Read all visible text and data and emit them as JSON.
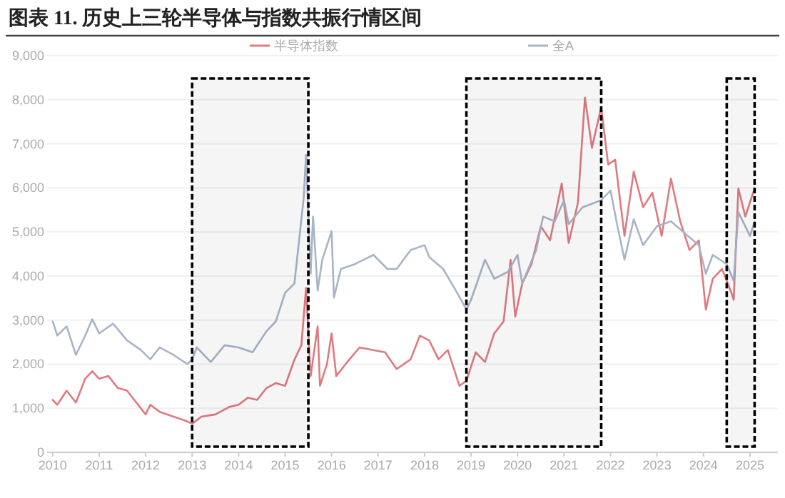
{
  "chart_data": {
    "type": "line",
    "title": "图表 11. 历史上三轮半导体与指数共振行情区间",
    "xlim": [
      2009.88,
      2025.6
    ],
    "xticks": [
      2010,
      2011,
      2012,
      2013,
      2014,
      2015,
      2016,
      2017,
      2018,
      2019,
      2020,
      2021,
      2022,
      2023,
      2024,
      2025
    ],
    "ylim": [
      0,
      9000
    ],
    "yticks": [
      0,
      {
        "value": 1000,
        "label": "1,000"
      },
      {
        "value": 2000,
        "label": "2,000"
      },
      {
        "value": 3000,
        "label": "3,000"
      },
      {
        "value": 4000,
        "label": "4,000"
      },
      {
        "value": 5000,
        "label": "5,000"
      },
      {
        "value": 6000,
        "label": "6,000"
      },
      {
        "value": 7000,
        "label": "7,000"
      },
      {
        "value": 8000,
        "label": "8,000"
      },
      {
        "value": 9000,
        "label": "9,000"
      }
    ],
    "grid": "y",
    "legend": "top",
    "series": [
      {
        "name": "半导体指数",
        "color": "#e07a80",
        "x": [
          2010.0,
          2010.1,
          2010.3,
          2010.5,
          2010.7,
          2010.85,
          2011.0,
          2011.2,
          2011.4,
          2011.6,
          2011.8,
          2012.0,
          2012.1,
          2012.3,
          2012.6,
          2012.9,
          2013.0,
          2013.2,
          2013.5,
          2013.8,
          2014.0,
          2014.2,
          2014.4,
          2014.6,
          2014.8,
          2015.0,
          2015.2,
          2015.35,
          2015.45,
          2015.55,
          2015.7,
          2015.75,
          2015.9,
          2016.0,
          2016.1,
          2016.3,
          2016.6,
          2016.9,
          2017.15,
          2017.4,
          2017.7,
          2017.9,
          2018.1,
          2018.3,
          2018.5,
          2018.75,
          2018.9,
          2019.1,
          2019.3,
          2019.5,
          2019.7,
          2019.85,
          2019.95,
          2020.1,
          2020.3,
          2020.5,
          2020.7,
          2020.95,
          2021.1,
          2021.3,
          2021.45,
          2021.6,
          2021.8,
          2021.95,
          2022.1,
          2022.3,
          2022.5,
          2022.7,
          2022.9,
          2023.1,
          2023.3,
          2023.5,
          2023.7,
          2023.9,
          2024.05,
          2024.2,
          2024.4,
          2024.6,
          2024.65,
          2024.75,
          2024.9,
          2025.0,
          2025.1
        ],
        "values": [
          1190,
          1080,
          1400,
          1130,
          1670,
          1840,
          1670,
          1730,
          1460,
          1400,
          1130,
          860,
          1080,
          920,
          810,
          700,
          650,
          810,
          860,
          1030,
          1080,
          1240,
          1190,
          1460,
          1570,
          1510,
          2100,
          2430,
          3730,
          1730,
          2860,
          1510,
          2000,
          2700,
          1730,
          2000,
          2380,
          2320,
          2270,
          1890,
          2110,
          2650,
          2540,
          2110,
          2320,
          1510,
          1620,
          2270,
          2050,
          2700,
          2970,
          4370,
          3080,
          3830,
          4270,
          5130,
          4810,
          6100,
          4750,
          5670,
          8050,
          6910,
          7830,
          6530,
          6640,
          4910,
          6370,
          5560,
          5890,
          4910,
          6210,
          5240,
          4590,
          4810,
          3240,
          3940,
          4160,
          3620,
          3460,
          5990,
          5350,
          5670,
          5990
        ]
      },
      {
        "name": "全A",
        "color": "#a8b4c8",
        "x": [
          2010.0,
          2010.1,
          2010.3,
          2010.5,
          2010.7,
          2010.85,
          2011.0,
          2011.3,
          2011.6,
          2011.9,
          2012.1,
          2012.3,
          2012.6,
          2012.9,
          2013.0,
          2013.1,
          2013.4,
          2013.7,
          2014.0,
          2014.3,
          2014.6,
          2014.8,
          2015.0,
          2015.2,
          2015.4,
          2015.45,
          2015.55,
          2015.6,
          2015.7,
          2015.8,
          2016.0,
          2016.05,
          2016.2,
          2016.5,
          2016.9,
          2017.2,
          2017.4,
          2017.7,
          2018.0,
          2018.1,
          2018.4,
          2018.7,
          2018.9,
          2019.0,
          2019.3,
          2019.5,
          2019.8,
          2020.0,
          2020.1,
          2020.4,
          2020.55,
          2020.8,
          2021.0,
          2021.1,
          2021.4,
          2021.8,
          2022.0,
          2022.15,
          2022.3,
          2022.5,
          2022.7,
          2023.0,
          2023.3,
          2023.6,
          2023.9,
          2024.05,
          2024.2,
          2024.5,
          2024.65,
          2024.75,
          2025.0,
          2025.1
        ],
        "values": [
          2970,
          2650,
          2860,
          2210,
          2650,
          3020,
          2700,
          2920,
          2540,
          2320,
          2110,
          2380,
          2210,
          2000,
          2110,
          2380,
          2050,
          2430,
          2380,
          2270,
          2750,
          2970,
          3620,
          3830,
          5780,
          6750,
          4050,
          5350,
          3670,
          4370,
          5020,
          3510,
          4160,
          4270,
          4480,
          4160,
          4160,
          4590,
          4700,
          4430,
          4160,
          3620,
          3240,
          3460,
          4370,
          3940,
          4100,
          4480,
          3830,
          4590,
          5350,
          5240,
          5720,
          5180,
          5560,
          5720,
          5940,
          5130,
          4370,
          5290,
          4700,
          5130,
          5240,
          4970,
          4700,
          4050,
          4480,
          4270,
          3890,
          5450,
          4910,
          5240
        ]
      }
    ],
    "bands": [
      {
        "axis": "x",
        "from": 2013.0,
        "to": 2015.5,
        "label": null,
        "color": "#000000"
      },
      {
        "axis": "x",
        "from": 2018.9,
        "to": 2021.8,
        "label": null,
        "color": "#000000"
      },
      {
        "axis": "x",
        "from": 2024.5,
        "to": 2025.1,
        "label": null,
        "color": "#000000"
      }
    ]
  }
}
